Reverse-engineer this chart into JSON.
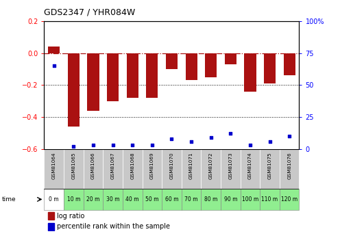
{
  "title": "GDS2347 / YHR084W",
  "samples": [
    "GSM81064",
    "GSM81065",
    "GSM81066",
    "GSM81067",
    "GSM81068",
    "GSM81069",
    "GSM81070",
    "GSM81071",
    "GSM81072",
    "GSM81073",
    "GSM81074",
    "GSM81075",
    "GSM81076"
  ],
  "time_labels": [
    "0 m",
    "10 m",
    "20 m",
    "30 m",
    "40 m",
    "50 m",
    "60 m",
    "70 m",
    "80 m",
    "90 m",
    "100 m",
    "110 m",
    "120 m"
  ],
  "log_ratio": [
    0.04,
    -0.46,
    -0.36,
    -0.3,
    -0.28,
    -0.28,
    -0.1,
    -0.17,
    -0.15,
    -0.07,
    -0.24,
    -0.19,
    -0.14
  ],
  "percentile": [
    65,
    2,
    3,
    3,
    3,
    3,
    8,
    6,
    9,
    12,
    3,
    6,
    10
  ],
  "ylim_left": [
    -0.6,
    0.2
  ],
  "ylim_right": [
    0,
    100
  ],
  "bar_color": "#AA1111",
  "dot_color": "#0000CC",
  "bg_color_gray": "#C8C8C8",
  "bg_color_green": "#90EE90",
  "bg_color_white_cell": "#FFFFFF",
  "legend_log_ratio": "log ratio",
  "legend_percentile": "percentile rank within the sample",
  "left_yticks": [
    -0.6,
    -0.4,
    -0.2,
    0,
    0.2
  ],
  "right_yticks": [
    0,
    25,
    50,
    75,
    100
  ],
  "right_yticklabels": [
    "0",
    "25",
    "50",
    "75",
    "100%"
  ]
}
